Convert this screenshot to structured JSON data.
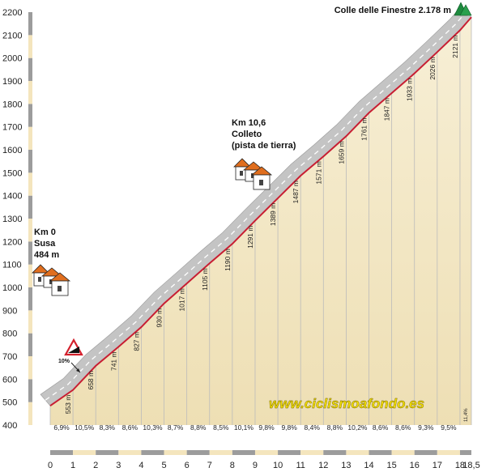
{
  "chart_data": {
    "type": "area",
    "xlim": [
      0,
      18.5
    ],
    "ylim": [
      400,
      2200
    ],
    "x_ticks": [
      "0",
      "1",
      "2",
      "3",
      "4",
      "5",
      "6",
      "7",
      "8",
      "9",
      "10",
      "11",
      "12",
      "13",
      "14",
      "15",
      "16",
      "17",
      "18",
      "18,5"
    ],
    "y_ticks": [
      "400",
      "500",
      "600",
      "700",
      "800",
      "900",
      "1000",
      "1100",
      "1200",
      "1300",
      "1400",
      "1500",
      "1600",
      "1700",
      "1800",
      "1900",
      "2000",
      "2100",
      "2200"
    ],
    "elevation_points": [
      {
        "km": 0,
        "m": 484
      },
      {
        "km": 1,
        "m": 553
      },
      {
        "km": 2,
        "m": 658
      },
      {
        "km": 3,
        "m": 741
      },
      {
        "km": 4,
        "m": 827
      },
      {
        "km": 5,
        "m": 930
      },
      {
        "km": 6,
        "m": 1017
      },
      {
        "km": 7,
        "m": 1105
      },
      {
        "km": 8,
        "m": 1190
      },
      {
        "km": 9,
        "m": 1291
      },
      {
        "km": 10,
        "m": 1389
      },
      {
        "km": 11,
        "m": 1487
      },
      {
        "km": 12,
        "m": 1571
      },
      {
        "km": 13,
        "m": 1659
      },
      {
        "km": 14,
        "m": 1761
      },
      {
        "km": 15,
        "m": 1847
      },
      {
        "km": 16,
        "m": 1933
      },
      {
        "km": 17,
        "m": 2026
      },
      {
        "km": 18,
        "m": 2121
      },
      {
        "km": 18.5,
        "m": 2178
      }
    ],
    "altitude_labels": [
      "553 m",
      "658 m",
      "741 m",
      "827 m",
      "930 m",
      "1017 m",
      "1105 m",
      "1190 m",
      "1291 m",
      "1389 m",
      "1487 m",
      "1571 m",
      "1659 m",
      "1761 m",
      "1847 m",
      "1933 m",
      "2026 m",
      "2121 m"
    ],
    "gradients": [
      "6,9%",
      "10,5%",
      "8,3%",
      "8,6%",
      "10,3%",
      "8,7%",
      "8,8%",
      "8,5%",
      "10,1%",
      "9,8%",
      "9,8%",
      "8,4%",
      "8,8%",
      "10,2%",
      "8,6%",
      "8,6%",
      "9,3%",
      "9,5%",
      "11,4%"
    ],
    "annotations": {
      "start": [
        "Km 0",
        "Susa",
        "484 m"
      ],
      "colleto": [
        "Km 10,6",
        "Colleto",
        "(pista de tierra)"
      ],
      "summit": "Colle delle Finestre 2.178 m",
      "max_gradient_sign": "10%",
      "website": "www.ciclismoafondo.es"
    },
    "colors": {
      "profile_line": "#c81e32",
      "area_fill": "#f3e7c2",
      "road_band": "#c4c4c4",
      "km_grid": "#bbbbbb",
      "website_text": "#f2dd00",
      "left_strip_light": "#f4e5bd",
      "left_strip_dark": "#9c9c9c",
      "summit_icon": "#1e8a3e"
    }
  }
}
